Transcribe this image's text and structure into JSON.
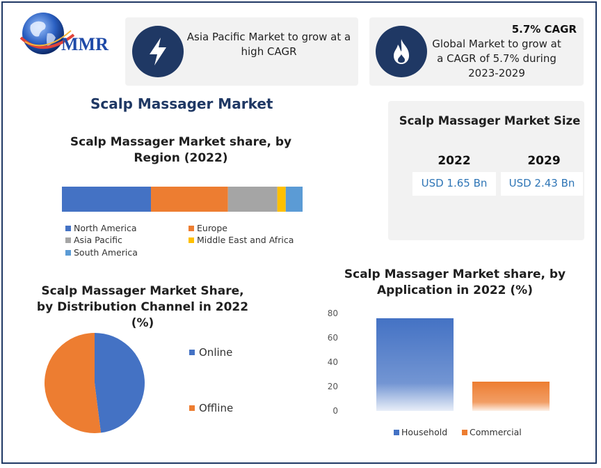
{
  "logo": {
    "text": "MMR"
  },
  "cards": {
    "asia": {
      "text": "Asia Pacific Market to grow at a high CAGR",
      "icon": "lightning-bolt-icon"
    },
    "global": {
      "badge": "5.7% CAGR",
      "text": "Global Market to grow at a CAGR of 5.7% during 2023-2029",
      "icon": "flame-icon"
    }
  },
  "main_title": "Scalp Massager Market",
  "market_size": {
    "title": "Scalp Massager Market Size",
    "years": [
      "2022",
      "2029"
    ],
    "values": [
      "USD 1.65 Bn",
      "USD 2.43 Bn"
    ]
  },
  "colors": {
    "navy": "#1f3864",
    "blue": "#4472c4",
    "orange": "#ed7d31",
    "gray": "#a5a5a5",
    "yellow": "#ffc000",
    "lightblue": "#5b9bd5",
    "value_text": "#2e75b6"
  },
  "chart_data": [
    {
      "type": "bar",
      "stacked": true,
      "orientation": "horizontal",
      "title": "Scalp Massager Market share, by Region (2022)",
      "series": [
        {
          "name": "North America",
          "values": [
            37
          ],
          "color": "#4472c4"
        },
        {
          "name": "Europe",
          "values": [
            32
          ],
          "color": "#ed7d31"
        },
        {
          "name": "Asia Pacific",
          "values": [
            20.5
          ],
          "color": "#a5a5a5"
        },
        {
          "name": "Middle East and Africa",
          "values": [
            3.5
          ],
          "color": "#ffc000"
        },
        {
          "name": "South America",
          "values": [
            7
          ],
          "color": "#5b9bd5"
        }
      ],
      "legend": "bottom"
    },
    {
      "type": "pie",
      "title": "Scalp Massager Market Share, by Distribution Channel in 2022 (%)",
      "labels": [
        "Online",
        "Offline"
      ],
      "values": [
        48,
        52
      ],
      "colors": [
        "#4472c4",
        "#ed7d31"
      ],
      "legend": "right"
    },
    {
      "type": "bar",
      "title": "Scalp Massager Market share, by Application in 2022 (%)",
      "categories": [
        "Household",
        "Commercial"
      ],
      "values": [
        76,
        24
      ],
      "colors": [
        "#4472c4",
        "#ed7d31"
      ],
      "y_ticks": [
        "80",
        "60",
        "40",
        "20",
        "0"
      ],
      "ylim": [
        0,
        80
      ],
      "grid": false,
      "legend": "bottom"
    }
  ]
}
